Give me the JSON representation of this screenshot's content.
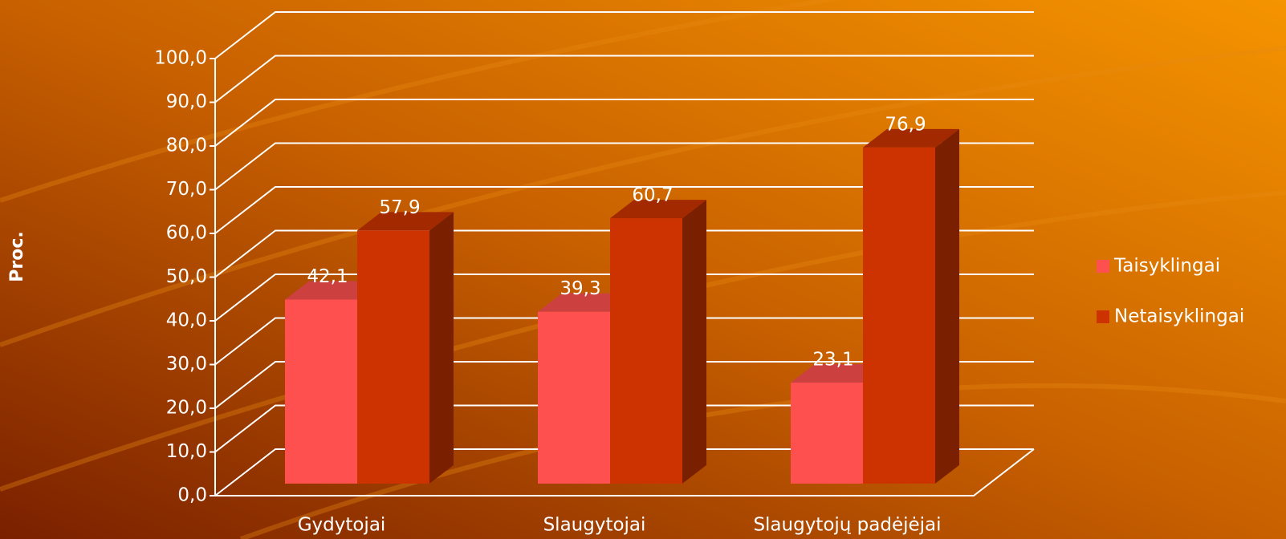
{
  "chart_data": {
    "type": "bar3d",
    "y_label": "Proc.",
    "categories": [
      "Gydytojai",
      "Slaugytojai",
      "Slaugytojų padėjėjai"
    ],
    "series": [
      {
        "name": "Taisyklingai",
        "color": "#ff5050",
        "values": [
          42.1,
          39.3,
          23.1
        ],
        "value_labels": [
          "42,1",
          "39,3",
          "23,1"
        ]
      },
      {
        "name": "Netaisyklingai",
        "color": "#cc3300",
        "values": [
          57.9,
          60.7,
          76.9
        ],
        "value_labels": [
          "57,9",
          "60,7",
          "76,9"
        ]
      }
    ],
    "ylim": [
      0,
      100
    ],
    "yticks": [
      {
        "value": 0,
        "label": "0,0"
      },
      {
        "value": 10,
        "label": "10,0"
      },
      {
        "value": 20,
        "label": "20,0"
      },
      {
        "value": 30,
        "label": "30,0"
      },
      {
        "value": 40,
        "label": "40,0"
      },
      {
        "value": 50,
        "label": "50,0"
      },
      {
        "value": 60,
        "label": "60,0"
      },
      {
        "value": 70,
        "label": "70,0"
      },
      {
        "value": 80,
        "label": "80,0"
      },
      {
        "value": 90,
        "label": "90,0"
      },
      {
        "value": 100,
        "label": "100,0"
      }
    ],
    "grid": true,
    "legend": "right"
  }
}
